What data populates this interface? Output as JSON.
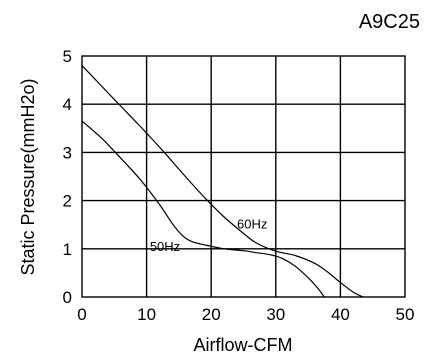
{
  "chart_data": {
    "type": "line",
    "title": "A9C25",
    "xlabel": "Airflow-CFM",
    "ylabel": "Static Pressure(mmH2o)",
    "xlim": [
      0,
      50
    ],
    "ylim": [
      0,
      5
    ],
    "xticks": [
      "0",
      "10",
      "20",
      "30",
      "40",
      "50"
    ],
    "yticks": [
      "0",
      "1",
      "2",
      "3",
      "4",
      "5"
    ],
    "grid": true,
    "series": [
      {
        "name": "60Hz",
        "x": [
          0,
          2,
          5,
          8,
          10,
          13,
          16,
          19,
          22,
          25,
          27,
          30,
          33,
          36,
          38,
          40,
          42,
          43.5
        ],
        "y": [
          4.8,
          4.52,
          4.1,
          3.68,
          3.4,
          2.96,
          2.5,
          2.06,
          1.66,
          1.32,
          1.12,
          0.95,
          0.86,
          0.7,
          0.52,
          0.3,
          0.1,
          0.0
        ]
      },
      {
        "name": "50Hz",
        "x": [
          0,
          3,
          6,
          9,
          12,
          14,
          15.5,
          17,
          19,
          22,
          25,
          27,
          29,
          31,
          33,
          35,
          36.5,
          37.5
        ],
        "y": [
          3.65,
          3.3,
          2.88,
          2.44,
          1.92,
          1.52,
          1.28,
          1.15,
          1.08,
          1.0,
          0.96,
          0.92,
          0.88,
          0.8,
          0.64,
          0.4,
          0.18,
          0.0
        ]
      }
    ]
  }
}
